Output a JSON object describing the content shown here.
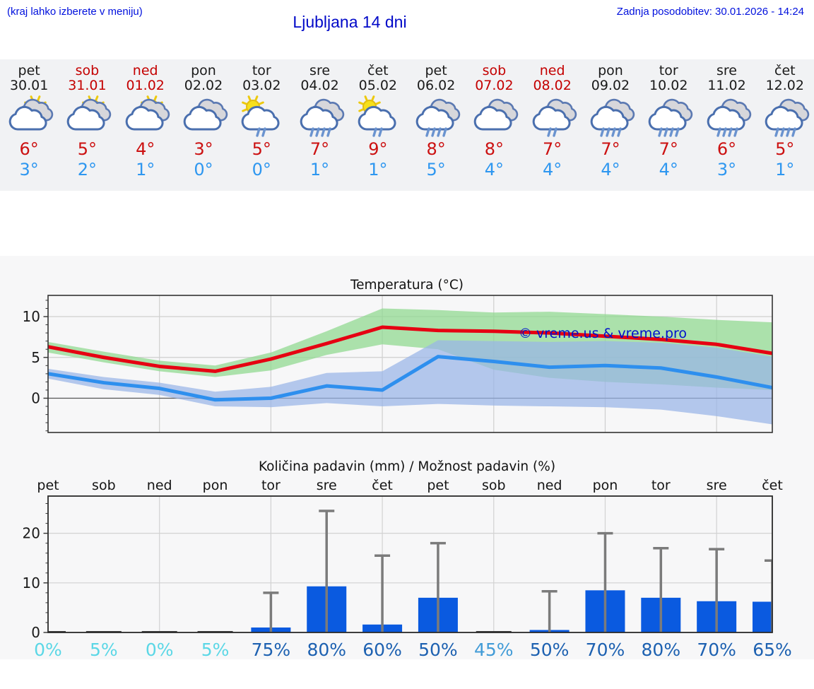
{
  "header": {
    "menu_hint": "(kraj lahko izberete v meniju)",
    "title": "Ljubljana 14 dni",
    "last_update": "Zadnja posodobitev: 30.01.2026 - 14:24"
  },
  "watermark": "© vreme.us & vreme.pro",
  "colors": {
    "link": "#0010dd",
    "title": "#0008c8",
    "strip_bg": "#f1f2f4",
    "figure_bg": "#f7f7f8",
    "weekend": "#c40000",
    "weekday": "#1a1a1a",
    "tmax_text": "#cc1111",
    "tmin_text": "#2e97f0",
    "line_max": "#e60012",
    "line_min": "#2e8fee",
    "band_max": "#8ed88e",
    "band_min": "#98b4e8",
    "bar": "#0a5ae0",
    "whisker": "#7b7b7b",
    "prob_low": "#5bd7e6",
    "prob_mid": "#419bd7",
    "prob_high": "#1d61b1",
    "watermark": "#0010cc"
  },
  "days": [
    {
      "name": "pet",
      "date": "30.01",
      "weekend": false,
      "icon": "partly-sunny",
      "tmax": "6°",
      "tmin": "3°"
    },
    {
      "name": "sob",
      "date": "31.01",
      "weekend": true,
      "icon": "partly-sunny",
      "tmax": "5°",
      "tmin": "2°"
    },
    {
      "name": "ned",
      "date": "01.02",
      "weekend": true,
      "icon": "partly-sunny",
      "tmax": "4°",
      "tmin": "1°"
    },
    {
      "name": "pon",
      "date": "02.02",
      "weekend": false,
      "icon": "cloudy",
      "tmax": "3°",
      "tmin": "0°"
    },
    {
      "name": "tor",
      "date": "03.02",
      "weekend": false,
      "icon": "sun-light-rain",
      "tmax": "5°",
      "tmin": "0°"
    },
    {
      "name": "sre",
      "date": "04.02",
      "weekend": false,
      "icon": "rain",
      "tmax": "7°",
      "tmin": "1°"
    },
    {
      "name": "čet",
      "date": "05.02",
      "weekend": false,
      "icon": "sun-light-rain",
      "tmax": "9°",
      "tmin": "1°"
    },
    {
      "name": "pet",
      "date": "06.02",
      "weekend": false,
      "icon": "rain",
      "tmax": "8°",
      "tmin": "5°"
    },
    {
      "name": "sob",
      "date": "07.02",
      "weekend": true,
      "icon": "cloudy",
      "tmax": "8°",
      "tmin": "4°"
    },
    {
      "name": "ned",
      "date": "08.02",
      "weekend": true,
      "icon": "light-rain",
      "tmax": "7°",
      "tmin": "4°"
    },
    {
      "name": "pon",
      "date": "09.02",
      "weekend": false,
      "icon": "rain",
      "tmax": "7°",
      "tmin": "4°"
    },
    {
      "name": "tor",
      "date": "10.02",
      "weekend": false,
      "icon": "rain",
      "tmax": "7°",
      "tmin": "4°"
    },
    {
      "name": "sre",
      "date": "11.02",
      "weekend": false,
      "icon": "rain",
      "tmax": "6°",
      "tmin": "3°"
    },
    {
      "name": "čet",
      "date": "12.02",
      "weekend": false,
      "icon": "rain",
      "tmax": "5°",
      "tmin": "1°"
    }
  ],
  "icon_styles": {
    "partly-sunny": {
      "sun": "right",
      "back": true,
      "front": true,
      "drops": 0
    },
    "cloudy": {
      "sun": null,
      "back": true,
      "front": true,
      "drops": 0
    },
    "sun-light-rain": {
      "sun": "left",
      "back": false,
      "front": true,
      "drops": 2
    },
    "rain": {
      "sun": null,
      "back": true,
      "front": true,
      "drops": 4
    },
    "light-rain": {
      "sun": null,
      "back": true,
      "front": true,
      "drops": 2
    }
  },
  "chart_data": [
    {
      "type": "line",
      "title": "Temperatura (°C)",
      "categories": [
        "30.01",
        "31.01",
        "01.02",
        "02.02",
        "03.02",
        "04.02",
        "05.02",
        "06.02",
        "07.02",
        "08.02",
        "09.02",
        "10.02",
        "11.02",
        "12.02"
      ],
      "ylim": [
        -4.2,
        12.6
      ],
      "yticks": [
        0,
        5,
        10
      ],
      "grid": true,
      "legend_position": "none",
      "series": [
        {
          "name": "max-temp",
          "color": "#e60012",
          "values": [
            6.3,
            5.0,
            3.9,
            3.3,
            4.8,
            6.7,
            8.7,
            8.3,
            8.2,
            8.0,
            7.6,
            7.2,
            6.6,
            5.5
          ]
        },
        {
          "name": "min-temp",
          "color": "#2e8fee",
          "values": [
            3.0,
            1.9,
            1.2,
            -0.2,
            0.0,
            1.5,
            1.0,
            5.1,
            4.5,
            3.8,
            4.0,
            3.7,
            2.6,
            1.3
          ]
        }
      ],
      "bands": [
        {
          "name": "max-temp-range",
          "color": "#8ed88e",
          "upper": [
            6.9,
            5.7,
            4.6,
            4.0,
            5.6,
            8.2,
            11.0,
            10.8,
            10.5,
            10.6,
            10.3,
            10.0,
            9.6,
            9.3
          ],
          "lower": [
            5.6,
            4.4,
            3.3,
            2.6,
            3.4,
            5.3,
            6.6,
            6.0,
            3.5,
            2.5,
            2.0,
            1.7,
            1.3,
            1.0
          ]
        },
        {
          "name": "min-temp-range",
          "color": "#98b4e8",
          "upper": [
            3.6,
            2.6,
            1.9,
            0.8,
            1.4,
            3.1,
            3.3,
            7.1,
            7.0,
            6.9,
            7.0,
            6.8,
            6.2,
            5.1
          ],
          "lower": [
            2.4,
            1.1,
            0.4,
            -1.0,
            -1.1,
            -0.6,
            -1.0,
            -0.7,
            -0.9,
            -1.0,
            -1.1,
            -1.4,
            -2.2,
            -3.2
          ]
        }
      ],
      "watermark": "© vreme.us & vreme.pro"
    },
    {
      "type": "bar",
      "title": "Količina padavin (mm) / Možnost padavin (%)",
      "categories": [
        "pet",
        "sob",
        "ned",
        "pon",
        "tor",
        "sre",
        "čet",
        "pet",
        "sob",
        "ned",
        "pon",
        "tor",
        "sre",
        "čet"
      ],
      "ylim": [
        0,
        27.5
      ],
      "yticks": [
        0,
        10,
        20
      ],
      "grid": true,
      "values_mm": [
        0,
        0,
        0,
        0,
        1.0,
        9.3,
        1.6,
        7.0,
        0,
        0.5,
        8.5,
        7.0,
        6.3,
        6.2
      ],
      "whisker_max_mm": [
        null,
        null,
        null,
        null,
        8.0,
        24.5,
        15.5,
        18.0,
        null,
        8.3,
        20.0,
        17.0,
        16.8,
        14.5
      ],
      "probability_pct": [
        0,
        5,
        0,
        5,
        75,
        80,
        60,
        50,
        45,
        50,
        70,
        80,
        70,
        65
      ],
      "probability_labels": [
        "0%",
        "5%",
        "0%",
        "5%",
        "75%",
        "80%",
        "60%",
        "50%",
        "45%",
        "50%",
        "70%",
        "80%",
        "70%",
        "65%"
      ]
    }
  ]
}
